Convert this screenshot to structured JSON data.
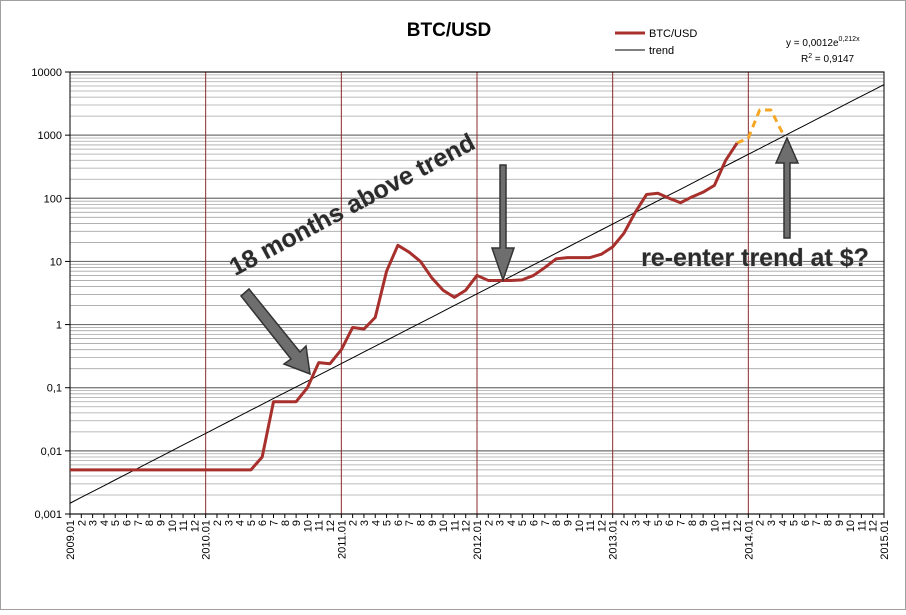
{
  "chart_data": {
    "type": "line",
    "title": "BTC/USD",
    "ylog": true,
    "grid": true,
    "legend": "top-right",
    "ylim": [
      0.001,
      10000
    ],
    "yticks": [
      {
        "value": 0.001,
        "label": "0,001"
      },
      {
        "value": 0.01,
        "label": "0,01"
      },
      {
        "value": 0.1,
        "label": "0,1"
      },
      1,
      10,
      100,
      1000,
      10000
    ],
    "categories": [
      "2009.01",
      "2",
      "3",
      "4",
      "5",
      "6",
      "7",
      "8",
      "9",
      "10",
      "11",
      "12",
      "2010.01",
      "2",
      "3",
      "4",
      "5",
      "6",
      "7",
      "8",
      "9",
      "10",
      "11",
      "12",
      "2011.01",
      "2",
      "3",
      "4",
      "5",
      "6",
      "7",
      "8",
      "9",
      "10",
      "11",
      "12",
      "2012.01",
      "2",
      "3",
      "4",
      "5",
      "6",
      "7",
      "8",
      "9",
      "10",
      "11",
      "12",
      "2013.01",
      "2",
      "3",
      "4",
      "5",
      "6",
      "7",
      "8",
      "9",
      "10",
      "11",
      "12",
      "2014.01",
      "2",
      "3",
      "4",
      "5",
      "6",
      "7",
      "8",
      "9",
      "10",
      "11",
      "12",
      "2015.01"
    ],
    "series": [
      {
        "name": "BTC/USD",
        "color": "#a8302c",
        "width": 3,
        "values": [
          0.005,
          0.005,
          0.005,
          0.005,
          0.005,
          0.005,
          0.005,
          0.005,
          0.005,
          0.005,
          0.005,
          0.005,
          0.005,
          0.005,
          0.005,
          0.005,
          0.005,
          0.008,
          0.06,
          0.06,
          0.06,
          0.1,
          0.25,
          0.24,
          0.4,
          0.9,
          0.85,
          1.3,
          7,
          18,
          14,
          10,
          5.5,
          3.5,
          2.7,
          3.5,
          6,
          5,
          5,
          5,
          5.1,
          6,
          8,
          11,
          11.5,
          11.5,
          11.5,
          13,
          17,
          28,
          60,
          115,
          120,
          100,
          85,
          105,
          125,
          160,
          400,
          750,
          null,
          null,
          null,
          null,
          null,
          null,
          null,
          null,
          null,
          null,
          null,
          null,
          null
        ]
      },
      {
        "color": "#f5a623",
        "width": 3,
        "dashed": true,
        "values": [
          null,
          null,
          null,
          null,
          null,
          null,
          null,
          null,
          null,
          null,
          null,
          null,
          null,
          null,
          null,
          null,
          null,
          null,
          null,
          null,
          null,
          null,
          null,
          null,
          null,
          null,
          null,
          null,
          null,
          null,
          null,
          null,
          null,
          null,
          null,
          null,
          null,
          null,
          null,
          null,
          null,
          null,
          null,
          null,
          null,
          null,
          null,
          null,
          null,
          null,
          null,
          null,
          null,
          null,
          null,
          null,
          null,
          null,
          null,
          750,
          900,
          2500,
          2500,
          1100,
          null,
          null,
          null,
          null,
          null,
          null,
          null,
          null,
          null
        ]
      },
      {
        "name": "trend",
        "color": "#000000",
        "width": 1,
        "values": [
          0.00148,
          0.00184,
          0.00227,
          0.0028,
          0.00347,
          0.00429,
          0.0053,
          0.00655,
          0.0081,
          0.01,
          0.0124,
          0.0153,
          0.0189,
          0.0234,
          0.0289,
          0.0357,
          0.0442,
          0.0546,
          0.0675,
          0.0834,
          0.103,
          0.127,
          0.158,
          0.195,
          0.241,
          0.298,
          0.368,
          0.455,
          0.562,
          0.695,
          0.859,
          1.06,
          1.31,
          1.62,
          2.01,
          2.48,
          3.07,
          3.79,
          4.69,
          5.79,
          7.16,
          8.85,
          10.9,
          13.5,
          16.7,
          20.7,
          25.6,
          31.6,
          39.1,
          48.3,
          59.7,
          73.8,
          91.2,
          113,
          139,
          172,
          213,
          263,
          325,
          402,
          497,
          614,
          759,
          938,
          1160,
          1430,
          1770,
          2190,
          2710,
          3350,
          4140,
          5110,
          6320
        ]
      }
    ],
    "equation_base": "y = 0,0012e",
    "equation_exponent": "0,212x",
    "r2_label": "R",
    "r2_sup": "2",
    "r2_value": " = 0,9147",
    "annotations": [
      "18 months above trend",
      "re-enter trend at $?"
    ]
  }
}
